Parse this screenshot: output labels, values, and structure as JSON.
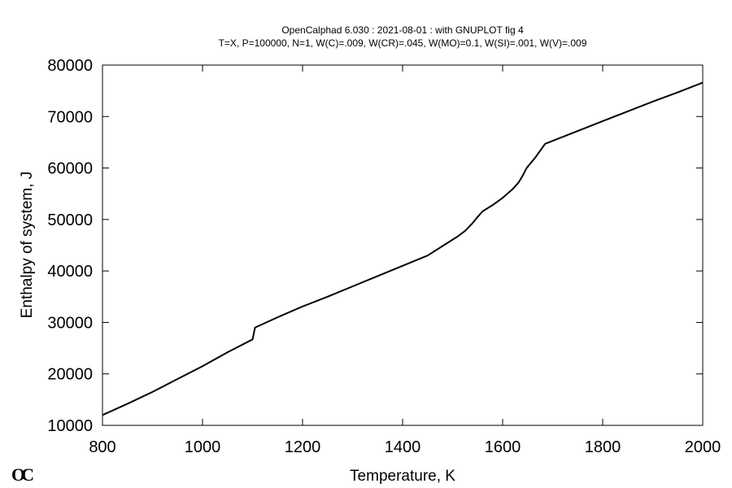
{
  "chart_data": {
    "type": "line",
    "title": "OpenCalphad    6.030 :  2021-08-01 : with GNUPLOT fig 4",
    "subtitle": "T=X,  P=100000, N=1, W(C)=.009, W(CR)=.045, W(MO)=0.1, W(SI)=.001, W(V)=.009",
    "xlabel": "Temperature, K",
    "ylabel": "Enthalpy of system, J",
    "xlim": [
      800,
      2000
    ],
    "ylim": [
      10000,
      80000
    ],
    "x_ticks": [
      800,
      1000,
      1200,
      1400,
      1600,
      1800,
      2000
    ],
    "y_ticks": [
      10000,
      20000,
      30000,
      40000,
      50000,
      60000,
      70000,
      80000
    ],
    "grid": false,
    "legend": "none",
    "line_color": "#000000",
    "series": [
      {
        "x": [
          800,
          850,
          900,
          950,
          1000,
          1050,
          1100,
          1105,
          1150,
          1200,
          1250,
          1300,
          1350,
          1400,
          1450,
          1510,
          1525,
          1540,
          1550,
          1560,
          1580,
          1600,
          1620,
          1632,
          1640,
          1648,
          1665,
          1685,
          1750,
          1800,
          1850,
          1900,
          1950,
          2000
        ],
        "y": [
          12000,
          14200,
          16500,
          19000,
          21500,
          24200,
          26700,
          29000,
          31000,
          33100,
          35000,
          37000,
          39000,
          41000,
          43000,
          46700,
          47800,
          49300,
          50500,
          51600,
          52800,
          54200,
          55900,
          57200,
          58500,
          60000,
          62000,
          64700,
          67200,
          69100,
          71000,
          72900,
          74700,
          76600
        ]
      }
    ]
  },
  "logo": {
    "text": "OC"
  }
}
